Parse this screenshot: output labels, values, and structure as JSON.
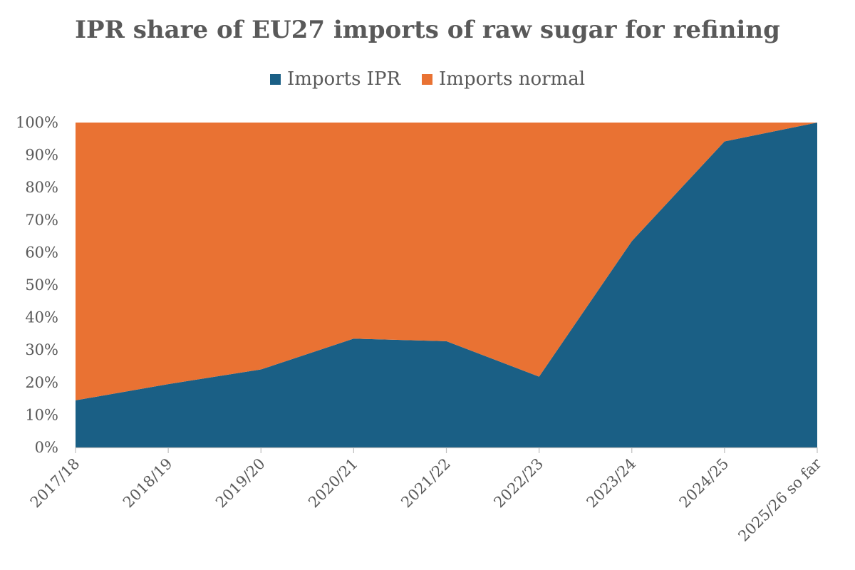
{
  "chart_data": {
    "type": "area",
    "stacked": true,
    "percent": true,
    "title": "IPR share of EU27 imports of raw sugar for refining",
    "xlabel": "",
    "ylabel": "",
    "categories": [
      "2017/18",
      "2018/19",
      "2019/20",
      "2020/21",
      "2021/22",
      "2022/23",
      "2023/24",
      "2024/25",
      "2025/26 so far"
    ],
    "series": [
      {
        "name": "Imports IPR",
        "color": "#1a5f85",
        "values": [
          14.5,
          19.5,
          24,
          33.5,
          32.7,
          21.8,
          63.5,
          94.2,
          100
        ]
      },
      {
        "name": "Imports normal",
        "color": "#e97233",
        "values": [
          85.5,
          80.5,
          76,
          66.5,
          67.3,
          78.2,
          36.5,
          5.8,
          0
        ]
      }
    ],
    "ylim": [
      0,
      100
    ],
    "yticks": [
      {
        "value": 0,
        "label": "0%"
      },
      {
        "value": 10,
        "label": "10%"
      },
      {
        "value": 20,
        "label": "20%"
      },
      {
        "value": 30,
        "label": "30%"
      },
      {
        "value": 40,
        "label": "40%"
      },
      {
        "value": 50,
        "label": "50%"
      },
      {
        "value": 60,
        "label": "60%"
      },
      {
        "value": 70,
        "label": "70%"
      },
      {
        "value": 80,
        "label": "80%"
      },
      {
        "value": 90,
        "label": "90%"
      },
      {
        "value": 100,
        "label": "100%"
      }
    ],
    "legend_position": "top",
    "grid": false
  }
}
